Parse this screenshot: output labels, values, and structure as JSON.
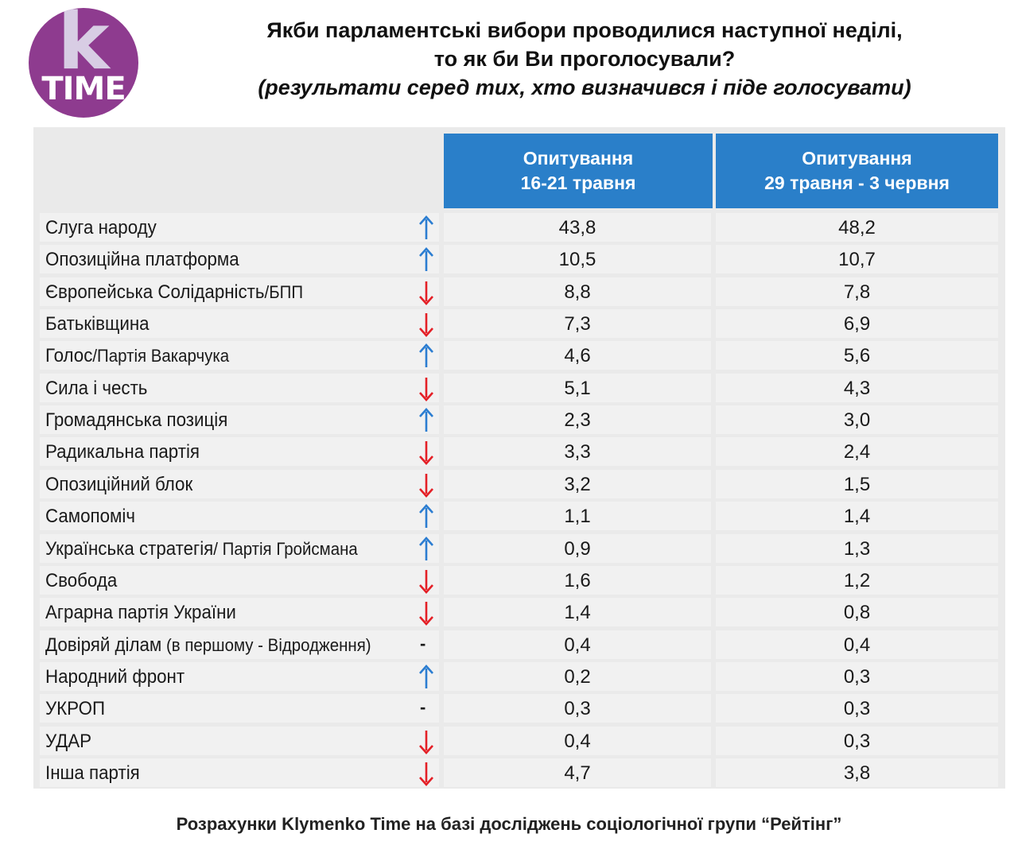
{
  "logo": {
    "letter": "k",
    "word": "TIME"
  },
  "title": {
    "line1": "Якби парламентські вибори проводилися наступної неділі,",
    "line2": "то як би Ви проголосували?",
    "line3": "(результати серед тих, хто визначився і піде голосувати)"
  },
  "colors": {
    "header": "#2a7fc9",
    "up_arrow": "#2b7dd1",
    "down_arrow": "#e41f26",
    "logo": "#8e3b8f"
  },
  "chart_data": {
    "type": "table",
    "columns": [
      {
        "line1": "Опитування",
        "line2": "16-21 травня"
      },
      {
        "line1": "Опитування",
        "line2": "29 травня - 3 червня"
      }
    ],
    "rows": [
      {
        "name": "Слуга народу",
        "suffix": "",
        "trend": "up",
        "a": "43,8",
        "b": "48,2"
      },
      {
        "name": "Опозиційна платформа",
        "suffix": "",
        "trend": "up",
        "a": "10,5",
        "b": "10,7"
      },
      {
        "name": "Європейська Солідарність",
        "suffix": "/БПП",
        "trend": "down",
        "a": "8,8",
        "b": "7,8"
      },
      {
        "name": "Батьківщина",
        "suffix": "",
        "trend": "down",
        "a": "7,3",
        "b": "6,9"
      },
      {
        "name": "Голос",
        "suffix": "/Партія Вакарчука",
        "trend": "up",
        "a": "4,6",
        "b": "5,6"
      },
      {
        "name": "Сила і честь",
        "suffix": "",
        "trend": "down",
        "a": "5,1",
        "b": "4,3"
      },
      {
        "name": "Громадянська позиція",
        "suffix": "",
        "trend": "up",
        "a": "2,3",
        "b": "3,0"
      },
      {
        "name": "Радикальна партія",
        "suffix": "",
        "trend": "down",
        "a": "3,3",
        "b": "2,4"
      },
      {
        "name": "Опозиційний блок",
        "suffix": "",
        "trend": "down",
        "a": "3,2",
        "b": "1,5"
      },
      {
        "name": "Самопоміч",
        "suffix": "",
        "trend": "up",
        "a": "1,1",
        "b": "1,4"
      },
      {
        "name": "Українська стратегія",
        "suffix": "/ Партія Гройсмана",
        "trend": "up",
        "a": "0,9",
        "b": "1,3"
      },
      {
        "name": "Свобода",
        "suffix": "",
        "trend": "down",
        "a": "1,6",
        "b": "1,2"
      },
      {
        "name": "Аграрна партія України",
        "suffix": "",
        "trend": "down",
        "a": "1,4",
        "b": "0,8"
      },
      {
        "name": "Довіряй ділам",
        "suffix": " (в першому - Відродження)",
        "trend": "same",
        "a": "0,4",
        "b": "0,4"
      },
      {
        "name": "Народний фронт",
        "suffix": "",
        "trend": "up",
        "a": "0,2",
        "b": "0,3"
      },
      {
        "name": "УКРОП",
        "suffix": "",
        "trend": "same",
        "a": "0,3",
        "b": "0,3"
      },
      {
        "name": "УДАР",
        "suffix": "",
        "trend": "down",
        "a": "0,4",
        "b": "0,3"
      },
      {
        "name": "Інша партія",
        "suffix": "",
        "trend": "down",
        "a": "4,7",
        "b": "3,8"
      }
    ]
  },
  "footer": "Розрахунки Klymenko Time на базі досліджень соціологічної групи “Рейтінг”"
}
